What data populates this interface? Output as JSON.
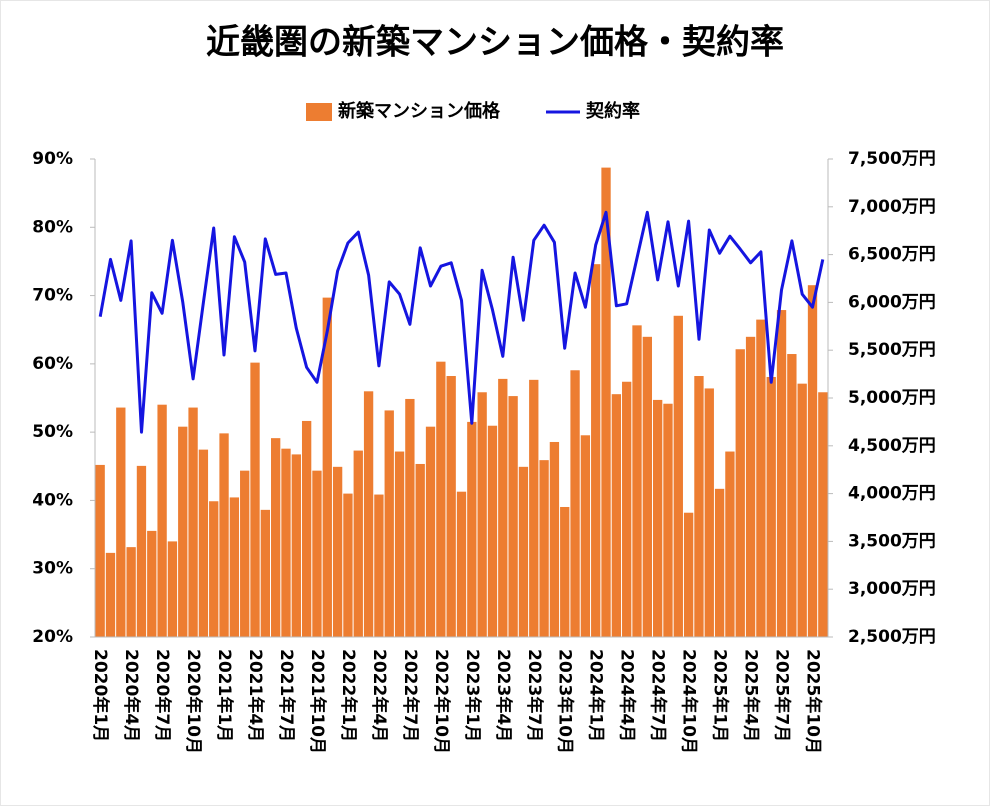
{
  "chart_data": {
    "type": "combo",
    "title": "近畿圏の新築マンション価格・契約率",
    "categories": [
      "2020年1月",
      null,
      null,
      "2020年4月",
      null,
      null,
      "2020年7月",
      null,
      null,
      "2020年10月",
      null,
      null,
      "2021年1月",
      null,
      null,
      "2021年4月",
      null,
      null,
      "2021年7月",
      null,
      null,
      "2021年10月",
      null,
      null,
      "2022年1月",
      null,
      null,
      "2022年4月",
      null,
      null,
      "2022年7月",
      null,
      null,
      "2022年10月",
      null,
      null,
      "2023年1月",
      null,
      null,
      "2023年4月",
      null,
      null,
      "2023年7月",
      null,
      null,
      "2023年10月",
      null,
      null,
      "2024年1月",
      null,
      null,
      "2024年4月",
      null,
      null,
      "2024年7月",
      null,
      null,
      "2024年10月",
      null,
      null,
      "2025年1月",
      null,
      null,
      "2025年4月",
      null,
      null,
      "2025年7月",
      null,
      null,
      "2025年10月",
      null
    ],
    "series": [
      {
        "name": "新築マンション価格",
        "type": "bar",
        "axis": "y2",
        "color": "#ED7D31",
        "values": [
          4300,
          3380,
          4900,
          3440,
          4290,
          3610,
          4930,
          3500,
          4700,
          4900,
          4460,
          3920,
          4630,
          3960,
          4240,
          5370,
          3830,
          4580,
          4470,
          4410,
          4760,
          4240,
          6050,
          4280,
          4000,
          4450,
          5070,
          3990,
          4870,
          4440,
          4990,
          4310,
          4700,
          5380,
          5230,
          4020,
          4750,
          5060,
          4710,
          5200,
          5020,
          4280,
          5190,
          4350,
          4540,
          3860,
          5290,
          4610,
          6400,
          7410,
          5040,
          5170,
          5760,
          5640,
          4980,
          4940,
          5860,
          3800,
          5230,
          5100,
          4050,
          4440,
          5510,
          5640,
          5820,
          5220,
          5920,
          5460,
          5150,
          6180,
          5060
        ]
      },
      {
        "name": "契約率",
        "type": "line",
        "axis": "y",
        "color": "#1515E0",
        "values": [
          66.9,
          75.3,
          69.3,
          78.0,
          50.0,
          70.4,
          67.4,
          78.1,
          69.0,
          57.8,
          69.0,
          79.9,
          61.3,
          78.6,
          74.9,
          61.9,
          78.3,
          73.1,
          73.3,
          65.2,
          59.5,
          57.3,
          64.8,
          73.6,
          77.7,
          79.3,
          73.0,
          59.7,
          72.0,
          70.2,
          65.8,
          77.0,
          71.4,
          74.3,
          74.8,
          69.3,
          51.3,
          73.7,
          67.9,
          61.1,
          75.6,
          66.4,
          78.1,
          80.3,
          77.8,
          62.3,
          73.3,
          68.3,
          77.4,
          82.2,
          68.5,
          68.8,
          75.5,
          82.2,
          72.3,
          80.8,
          71.4,
          80.9,
          63.6,
          79.6,
          76.2,
          78.7,
          76.8,
          74.8,
          76.4,
          57.3,
          70.8,
          78.0,
          70.2,
          68.3,
          75.3
        ]
      }
    ],
    "ylim": [
      20,
      90
    ],
    "yticks": [
      {
        "value": 20,
        "label": "20%"
      },
      {
        "value": 30,
        "label": "30%"
      },
      {
        "value": 40,
        "label": "40%"
      },
      {
        "value": 50,
        "label": "50%"
      },
      {
        "value": 60,
        "label": "60%"
      },
      {
        "value": 70,
        "label": "70%"
      },
      {
        "value": 80,
        "label": "80%"
      },
      {
        "value": 90,
        "label": "90%"
      }
    ],
    "y2lim": [
      2500,
      7500
    ],
    "y2ticks": [
      {
        "value": 2500,
        "label": "2,500万円"
      },
      {
        "value": 3000,
        "label": "3,000万円"
      },
      {
        "value": 3500,
        "label": "3,500万円"
      },
      {
        "value": 4000,
        "label": "4,000万円"
      },
      {
        "value": 4500,
        "label": "4,500万円"
      },
      {
        "value": 5000,
        "label": "5,000万円"
      },
      {
        "value": 5500,
        "label": "5,500万円"
      },
      {
        "value": 6000,
        "label": "6,000万円"
      },
      {
        "value": 6500,
        "label": "6,500万円"
      },
      {
        "value": 7000,
        "label": "7,000万円"
      },
      {
        "value": 7500,
        "label": "7,500万円"
      }
    ],
    "legend": "top"
  }
}
